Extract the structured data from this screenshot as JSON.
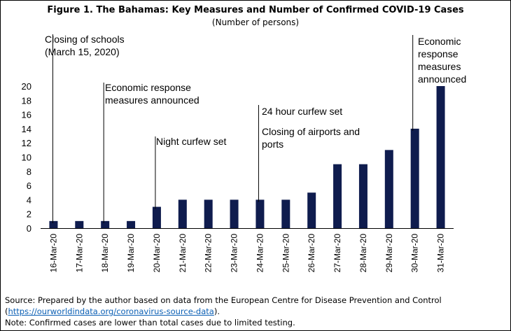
{
  "figure": {
    "title": "Figure 1. The Bahamas: Key Measures and Number of Confirmed COVID-19 Cases",
    "subtitle": "(Number of persons)"
  },
  "chart_data": {
    "type": "bar",
    "categories": [
      "16-Mar-20",
      "17-Mar-20",
      "18-Mar-20",
      "19-Mar-20",
      "20-Mar-20",
      "21-Mar-20",
      "22-Mar-20",
      "23-Mar-20",
      "24-Mar-20",
      "25-Mar-20",
      "26-Mar-20",
      "27-Mar-20",
      "28-Mar-20",
      "29-Mar-20",
      "30-Mar-20",
      "31-Mar-20"
    ],
    "values": [
      1,
      1,
      1,
      1,
      3,
      4,
      4,
      4,
      4,
      4,
      5,
      9,
      9,
      11,
      14,
      20
    ],
    "ylim": [
      0,
      20
    ],
    "yticks": [
      0,
      2,
      4,
      6,
      8,
      10,
      12,
      14,
      16,
      18,
      20
    ],
    "bar_color": "#0f1c4e",
    "grid": false,
    "annotations": [
      {
        "category": "16-Mar-20",
        "lines": [
          "Closing of schools",
          "(March 15, 2020)"
        ]
      },
      {
        "category": "18-Mar-20",
        "lines": [
          "Economic response",
          "measures announced"
        ]
      },
      {
        "category": "20-Mar-20",
        "lines": [
          "Night curfew set"
        ]
      },
      {
        "category": "24-Mar-20",
        "lines": [
          "24 hour curfew set",
          "",
          "Closing of airports and",
          "ports"
        ]
      },
      {
        "category": "30-Mar-20",
        "lines": [
          "Economic",
          "response",
          "measures",
          "announced"
        ]
      }
    ]
  },
  "footer": {
    "source": "Source: Prepared by the author based on data from the European Centre for Disease Prevention and Control",
    "link_open": "(",
    "link": "https://ourworldindata.org/coronavirus-source-data",
    "link_close": ").",
    "note": "Note: Confirmed cases are lower than total cases due to limited testing."
  }
}
